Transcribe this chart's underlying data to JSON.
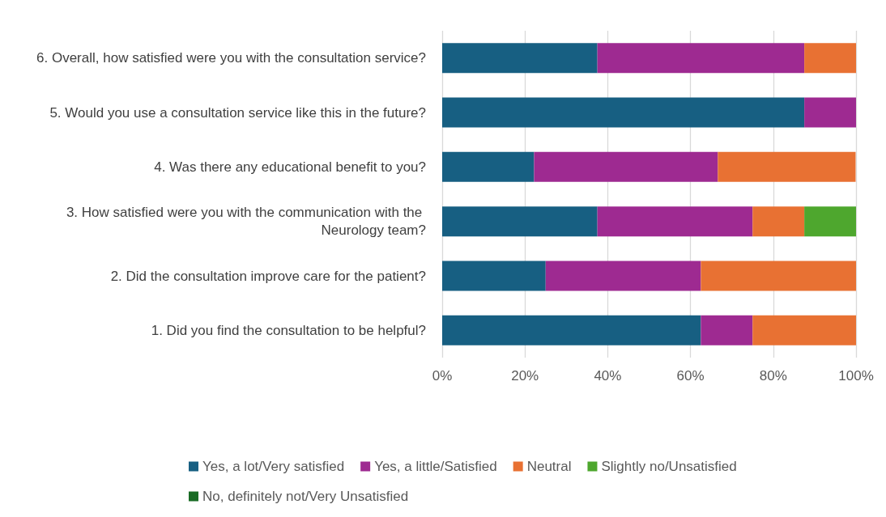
{
  "chart_data": {
    "type": "bar",
    "orientation": "horizontal",
    "stacked": true,
    "grid": "x",
    "legend": "bottom",
    "categories": [
      "6. Overall, how satisfied were you with the consultation service?",
      "5. Would you use a consultation service like this in the future?",
      "4. Was there any educational benefit to you?",
      "3. How satisfied were you with the communication with the Neurology team?",
      "2. Did the consultation improve care for the patient?",
      "1. Did you find the consultation to be helpful?"
    ],
    "series": [
      {
        "name": "Yes, a lot/Very satisfied",
        "color": "#175f82",
        "values": [
          37.5,
          87.5,
          22.2,
          37.5,
          25,
          62.5
        ]
      },
      {
        "name": "Yes, a little/Satisfied",
        "color": "#9e2a91",
        "values": [
          50,
          12.5,
          44.4,
          37.5,
          37.5,
          12.5
        ]
      },
      {
        "name": "Neutral",
        "color": "#e87133",
        "values": [
          12.5,
          0,
          33.3,
          12.5,
          37.5,
          25
        ]
      },
      {
        "name": "Slightly no/Unsatisfied",
        "color": "#4ea72e",
        "values": [
          0,
          0,
          0,
          12.5,
          0,
          0
        ]
      },
      {
        "name": "No, definitely not/Very Unsatisfied",
        "color": "#196b24",
        "values": [
          0,
          0,
          0,
          0,
          0,
          0
        ]
      }
    ],
    "xlim": [
      0,
      100
    ],
    "xticks": [
      {
        "value": 0,
        "label": "0%"
      },
      {
        "value": 20,
        "label": "20%"
      },
      {
        "value": 40,
        "label": "40%"
      },
      {
        "value": 60,
        "label": "60%"
      },
      {
        "value": 80,
        "label": "80%"
      },
      {
        "value": 100,
        "label": "100%"
      }
    ]
  }
}
